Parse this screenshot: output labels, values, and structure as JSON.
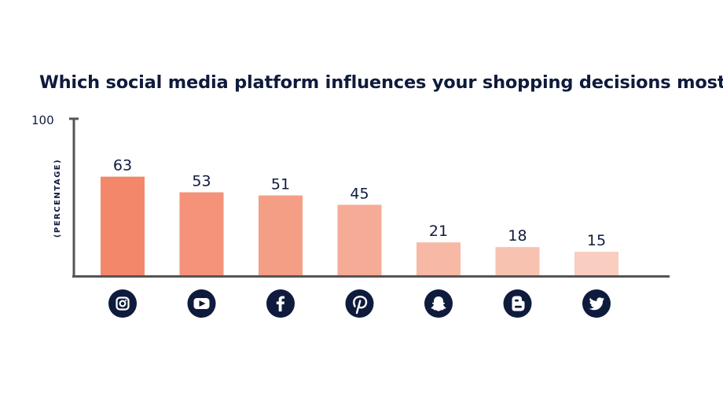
{
  "chart_data": {
    "type": "bar",
    "title": "Which social media platform influences your shopping decisions most?",
    "ylabel": "(PERCENTAGE)",
    "xlabel": "",
    "ylim": [
      0,
      100
    ],
    "yticks": [
      100
    ],
    "categories": [
      "instagram",
      "youtube",
      "facebook",
      "pinterest",
      "snapchat",
      "blogger",
      "twitter"
    ],
    "values": [
      63,
      53,
      51,
      45,
      21,
      18,
      15
    ],
    "colors": [
      "#f3876a",
      "#f4927a",
      "#f59e86",
      "#f6ab96",
      "#f7b8a5",
      "#f8c2b1",
      "#f9cdbf"
    ],
    "icon_names": [
      "instagram-icon",
      "youtube-icon",
      "facebook-icon",
      "pinterest-icon",
      "snapchat-icon",
      "blogger-icon",
      "twitter-icon"
    ],
    "icon_color": "#0f1b3d",
    "axis_color": "#555555",
    "grid": false
  }
}
